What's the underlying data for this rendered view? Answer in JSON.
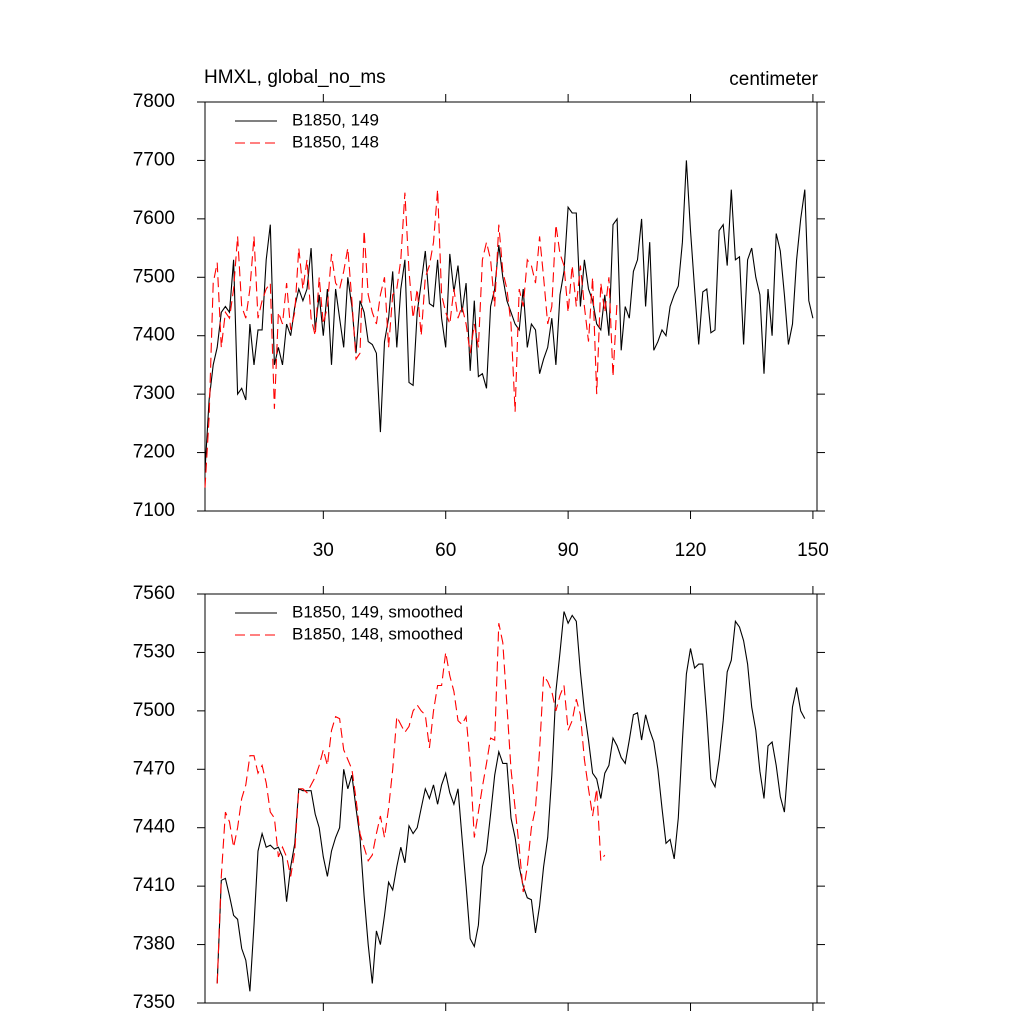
{
  "chart_data": [
    {
      "type": "line",
      "title": "HMXL, global_no_ms",
      "units": "centimeter",
      "legend": "top-left",
      "xlim": [
        1,
        151
      ],
      "xticks": [
        30,
        60,
        90,
        120,
        150
      ],
      "ylim": [
        7100,
        7800
      ],
      "yticks": [
        7100,
        7200,
        7300,
        7400,
        7500,
        7600,
        7700,
        7800
      ],
      "x": [
        1,
        2,
        3,
        4,
        5,
        6,
        7,
        8,
        9,
        10,
        11,
        12,
        13,
        14,
        15,
        16,
        17,
        18,
        19,
        20,
        21,
        22,
        23,
        24,
        25,
        26,
        27,
        28,
        29,
        30,
        31,
        32,
        33,
        34,
        35,
        36,
        37,
        38,
        39,
        40,
        41,
        42,
        43,
        44,
        45,
        46,
        47,
        48,
        49,
        50,
        51,
        52,
        53,
        54,
        55,
        56,
        57,
        58,
        59,
        60,
        61,
        62,
        63,
        64,
        65,
        66,
        67,
        68,
        69,
        70,
        71,
        72,
        73,
        74,
        75,
        76,
        77,
        78,
        79,
        80,
        81,
        82,
        83,
        84,
        85,
        86,
        87,
        88,
        89,
        90,
        91,
        92,
        93,
        94,
        95,
        96,
        97,
        98,
        99,
        100,
        101,
        102,
        103,
        104,
        105,
        106,
        107,
        108,
        109,
        110,
        111,
        112,
        113,
        114,
        115,
        116,
        117,
        118,
        119,
        120,
        121,
        122,
        123,
        124,
        125,
        126,
        127,
        128,
        129,
        130,
        131,
        132,
        133,
        134,
        135,
        136,
        137,
        138,
        139,
        140,
        141,
        142,
        143,
        144,
        145,
        146,
        147,
        148,
        149,
        150
      ],
      "series": [
        {
          "name": "B1850, 149",
          "color": "#000000",
          "dash": "solid",
          "values": [
            7170,
            7290,
            7350,
            7380,
            7440,
            7450,
            7440,
            7530,
            7300,
            7310,
            7290,
            7420,
            7350,
            7410,
            7410,
            7530,
            7590,
            7350,
            7380,
            7350,
            7420,
            7400,
            7450,
            7480,
            7460,
            7480,
            7550,
            7410,
            7470,
            7400,
            7480,
            7350,
            7480,
            7430,
            7380,
            7500,
            7450,
            7370,
            7460,
            7440,
            7390,
            7385,
            7370,
            7235,
            7390,
            7430,
            7510,
            7380,
            7480,
            7530,
            7320,
            7315,
            7440,
            7490,
            7545,
            7455,
            7450,
            7530,
            7430,
            7380,
            7540,
            7475,
            7520,
            7440,
            7490,
            7340,
            7460,
            7330,
            7335,
            7310,
            7450,
            7480,
            7555,
            7500,
            7460,
            7440,
            7420,
            7410,
            7480,
            7380,
            7420,
            7410,
            7335,
            7360,
            7380,
            7430,
            7350,
            7470,
            7510,
            7620,
            7610,
            7610,
            7450,
            7530,
            7480,
            7460,
            7420,
            7410,
            7470,
            7400,
            7590,
            7600,
            7375,
            7450,
            7430,
            7510,
            7530,
            7600,
            7450,
            7560,
            7375,
            7390,
            7410,
            7400,
            7450,
            7470,
            7485,
            7560,
            7700,
            7580,
            7480,
            7385,
            7475,
            7480,
            7405,
            7410,
            7580,
            7590,
            7520,
            7650,
            7530,
            7535,
            7385,
            7530,
            7550,
            7500,
            7470,
            7335,
            7480,
            7400,
            7575,
            7545,
            7470,
            7385,
            7420,
            7530,
            7600,
            7650,
            7460,
            7430
          ]
        },
        {
          "name": "B1850, 148",
          "color": "#ff0000",
          "dash": "dashed",
          "values": [
            7140,
            7260,
            7490,
            7525,
            7380,
            7440,
            7430,
            7480,
            7570,
            7450,
            7430,
            7480,
            7570,
            7430,
            7460,
            7480,
            7490,
            7275,
            7440,
            7420,
            7490,
            7410,
            7440,
            7550,
            7480,
            7530,
            7430,
            7400,
            7500,
            7420,
            7450,
            7540,
            7490,
            7480,
            7510,
            7550,
            7460,
            7360,
            7370,
            7580,
            7470,
            7440,
            7420,
            7470,
            7500,
            7380,
            7470,
            7480,
            7530,
            7645,
            7510,
            7430,
            7480,
            7400,
            7500,
            7520,
            7560,
            7650,
            7470,
            7440,
            7420,
            7480,
            7430,
            7450,
            7420,
            7370,
            7420,
            7380,
            7530,
            7560,
            7530,
            7450,
            7590,
            7510,
            7480,
            7420,
            7270,
            7480,
            7450,
            7530,
            7520,
            7490,
            7570,
            7500,
            7420,
            7450,
            7590,
            7540,
            7520,
            7440,
            7520,
            7450,
            7520,
            7450,
            7390,
            7500,
            7300,
            7490,
            7440,
            7500,
            7330,
            7460,
            null,
            null,
            null,
            null,
            null,
            null,
            null,
            null,
            null,
            null,
            null,
            null,
            null,
            null,
            null,
            null,
            null,
            null,
            null,
            null,
            null,
            null,
            null,
            null,
            null,
            null,
            null,
            null,
            null,
            null,
            null,
            null,
            null,
            null,
            null,
            null,
            null,
            null,
            null,
            null,
            null,
            null,
            null,
            null,
            null,
            null,
            null,
            null
          ]
        }
      ]
    },
    {
      "type": "line",
      "legend": "top-left",
      "xlim": [
        1,
        151
      ],
      "xticks": [
        30,
        60,
        90,
        120,
        150
      ],
      "ylim": [
        7350,
        7560
      ],
      "yticks": [
        7350,
        7380,
        7410,
        7440,
        7470,
        7500,
        7530,
        7560
      ],
      "x": [
        1,
        2,
        3,
        4,
        5,
        6,
        7,
        8,
        9,
        10,
        11,
        12,
        13,
        14,
        15,
        16,
        17,
        18,
        19,
        20,
        21,
        22,
        23,
        24,
        25,
        26,
        27,
        28,
        29,
        30,
        31,
        32,
        33,
        34,
        35,
        36,
        37,
        38,
        39,
        40,
        41,
        42,
        43,
        44,
        45,
        46,
        47,
        48,
        49,
        50,
        51,
        52,
        53,
        54,
        55,
        56,
        57,
        58,
        59,
        60,
        61,
        62,
        63,
        64,
        65,
        66,
        67,
        68,
        69,
        70,
        71,
        72,
        73,
        74,
        75,
        76,
        77,
        78,
        79,
        80,
        81,
        82,
        83,
        84,
        85,
        86,
        87,
        88,
        89,
        90,
        91,
        92,
        93,
        94,
        95,
        96,
        97,
        98,
        99,
        100,
        101,
        102,
        103,
        104,
        105,
        106,
        107,
        108,
        109,
        110,
        111,
        112,
        113,
        114,
        115,
        116,
        117,
        118,
        119,
        120,
        121,
        122,
        123,
        124,
        125,
        126,
        127,
        128,
        129,
        130,
        131,
        132,
        133,
        134,
        135,
        136,
        137,
        138,
        139,
        140,
        141,
        142,
        143,
        144,
        145,
        146,
        147,
        148,
        149,
        150
      ],
      "series": [
        {
          "name": "B1850, 149, smoothed",
          "color": "#000000",
          "dash": "solid",
          "values": [
            null,
            null,
            null,
            7360,
            7413,
            7414,
            7405,
            7395,
            7393,
            7378,
            7372,
            7356,
            7390,
            7428,
            7437,
            7430,
            7431,
            7429,
            7430,
            7425,
            7402,
            7420,
            7432,
            7460,
            7459,
            7459,
            7459,
            7447,
            7440,
            7425,
            7415,
            7428,
            7435,
            7440,
            7470,
            7460,
            7467,
            7450,
            7435,
            7405,
            7380,
            7360,
            7387,
            7380,
            7395,
            7412,
            7408,
            7420,
            7430,
            7422,
            7441,
            7437,
            7440,
            7450,
            7460,
            7455,
            7462,
            7452,
            7462,
            7468,
            7458,
            7452,
            7460,
            7435,
            7410,
            7383,
            7379,
            7390,
            7420,
            7428,
            7447,
            7467,
            7479,
            7473,
            7473,
            7445,
            7435,
            7420,
            7410,
            7404,
            7403,
            7386,
            7400,
            7420,
            7435,
            7467,
            7510,
            7530,
            7551,
            7545,
            7549,
            7546,
            7520,
            7500,
            7485,
            7468,
            7465,
            7455,
            7468,
            7472,
            7486,
            7482,
            7476,
            7473,
            7485,
            7498,
            7499,
            7485,
            7498,
            7490,
            7484,
            7470,
            7450,
            7432,
            7434,
            7424,
            7445,
            7485,
            7519,
            7532,
            7522,
            7524,
            7524,
            7497,
            7465,
            7461,
            7475,
            7495,
            7520,
            7526,
            7546,
            7543,
            7536,
            7524,
            7502,
            7490,
            7469,
            7455,
            7482,
            7484,
            7472,
            7456,
            7448,
            7475,
            7502,
            7512,
            7500,
            7496,
            null,
            null
          ]
        },
        {
          "name": "B1850, 148, smoothed",
          "color": "#ff0000",
          "dash": "dashed",
          "values": [
            null,
            null,
            null,
            7360,
            7415,
            7448,
            7443,
            7430,
            7440,
            7455,
            7462,
            7477,
            7477,
            7468,
            7472,
            7463,
            7448,
            7445,
            7425,
            7430,
            7425,
            7415,
            7428,
            7460,
            7460,
            7458,
            7462,
            7466,
            7472,
            7480,
            7472,
            7490,
            7497,
            7496,
            7480,
            7475,
            7470,
            7455,
            7437,
            7430,
            7423,
            7426,
            7437,
            7446,
            7435,
            7450,
            7470,
            7497,
            7493,
            7489,
            7492,
            7500,
            7503,
            7500,
            7498,
            7481,
            7500,
            7513,
            7513,
            7530,
            7518,
            7510,
            7495,
            7493,
            7497,
            7473,
            7435,
            7448,
            7461,
            7473,
            7486,
            7485,
            7545,
            7535,
            7503,
            7470,
            7450,
            7430,
            7407,
            7420,
            7440,
            7450,
            7480,
            7518,
            7515,
            7510,
            7500,
            7508,
            7513,
            7490,
            7495,
            7506,
            7498,
            7475,
            7460,
            7446,
            7460,
            7423,
            7426,
            null,
            null,
            null,
            null,
            null,
            null,
            null,
            null,
            null,
            null,
            null,
            null,
            null,
            null,
            null,
            null,
            null,
            null,
            null,
            null,
            null,
            null,
            null,
            null,
            null,
            null,
            null,
            null,
            null,
            null,
            null,
            null,
            null,
            null,
            null,
            null,
            null,
            null,
            null,
            null,
            null,
            null,
            null,
            null,
            null,
            null,
            null,
            null,
            null,
            null,
            null
          ]
        }
      ]
    }
  ]
}
